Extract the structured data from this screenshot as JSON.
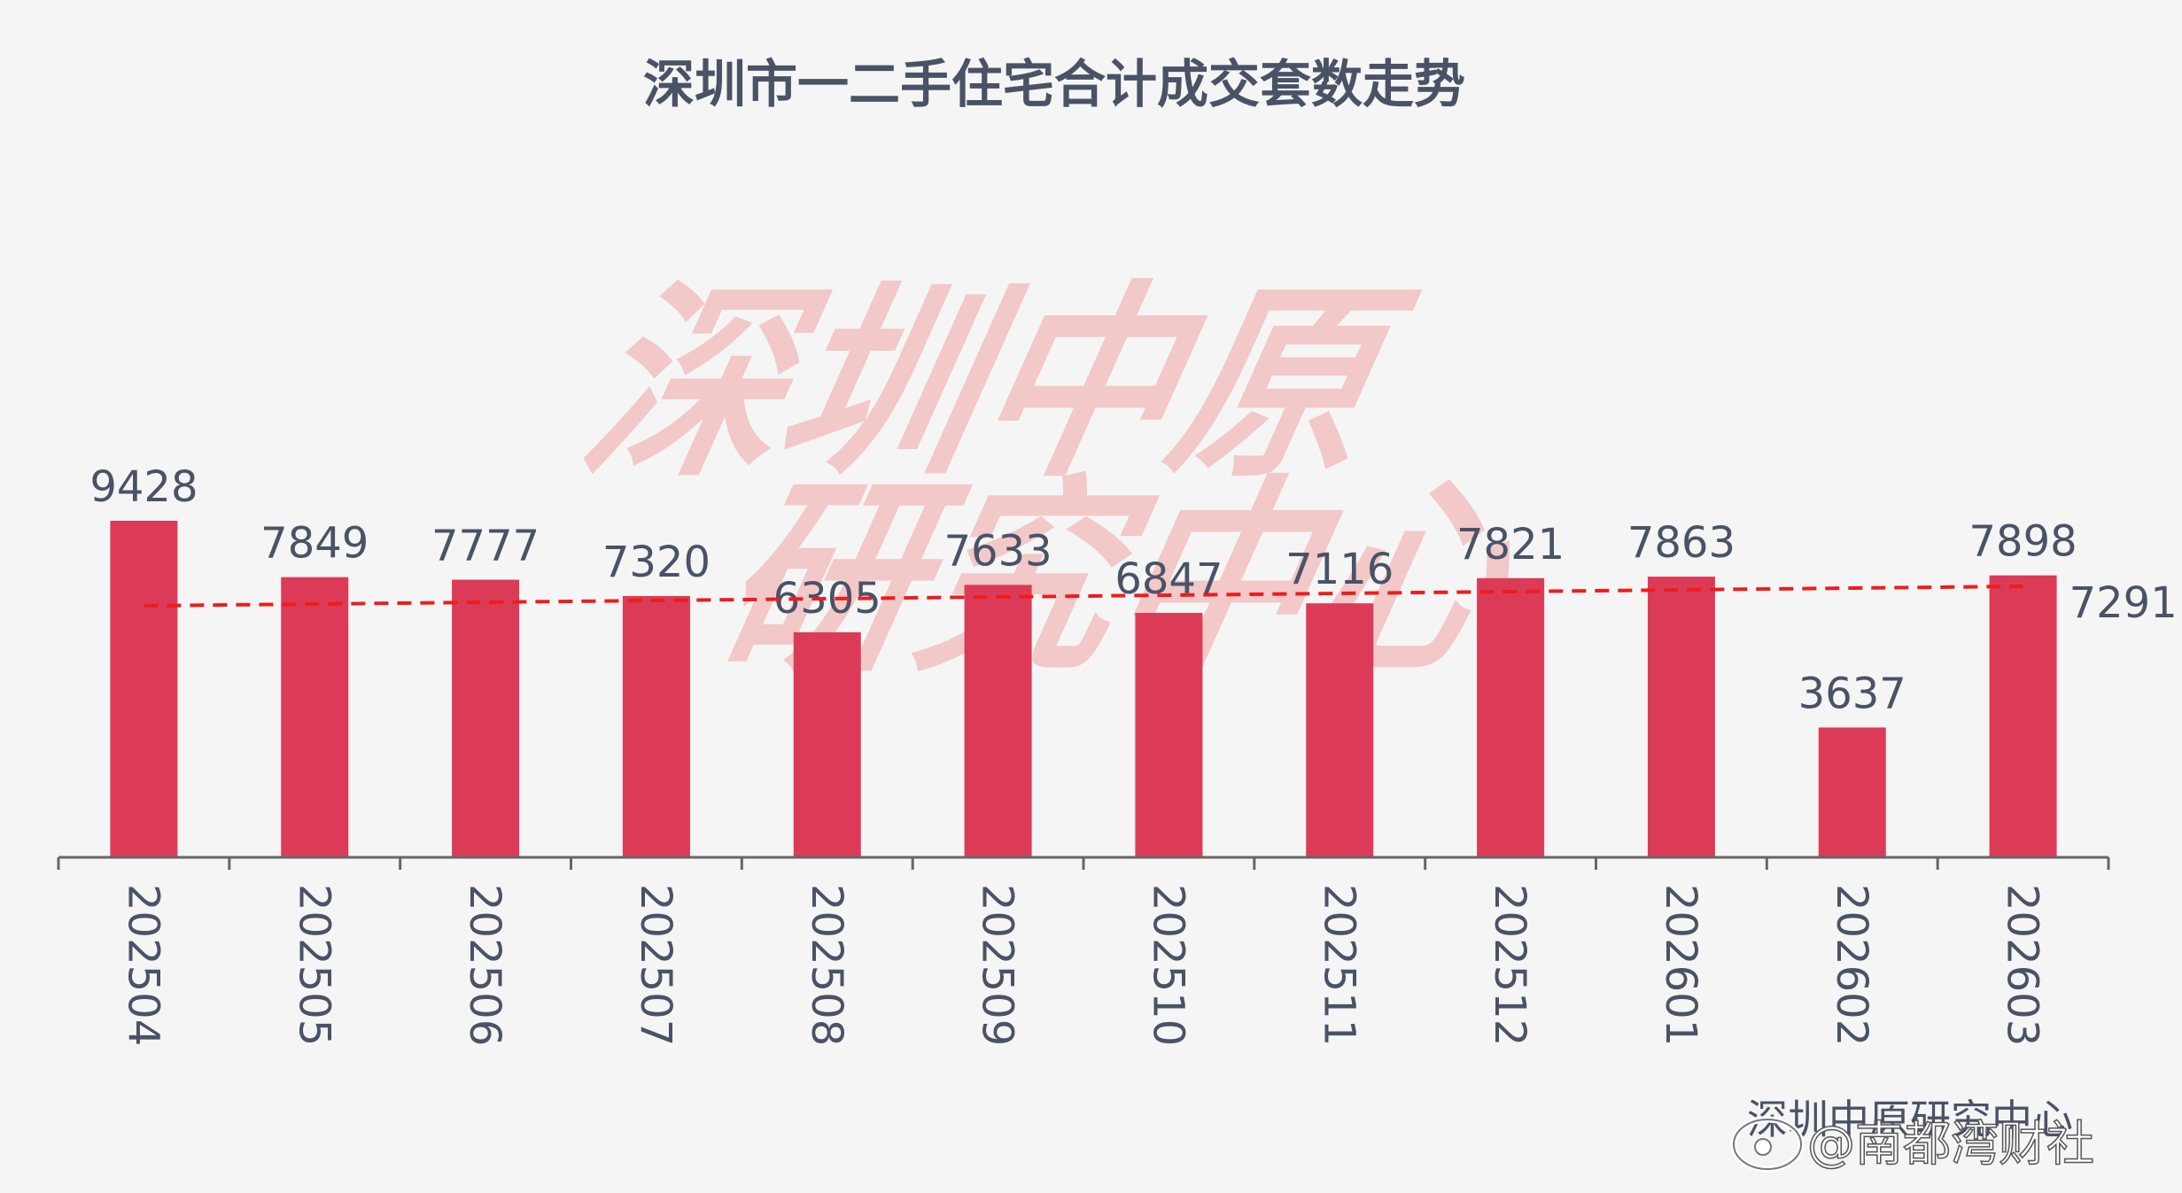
{
  "chart_data": {
    "type": "bar",
    "title": "深圳市一二手住宅合计成交套数走势",
    "categories": [
      "202504",
      "202505",
      "202506",
      "202507",
      "202508",
      "202509",
      "202510",
      "202511",
      "202512",
      "202601",
      "202602",
      "202603"
    ],
    "values": [
      9428,
      7849,
      7777,
      7320,
      6305,
      7633,
      6847,
      7116,
      7821,
      7863,
      3637,
      7898
    ],
    "average_line": {
      "value": 7291,
      "label": "7291",
      "style": "dashed"
    },
    "ylim": [
      0,
      10000
    ],
    "grid": false,
    "bar_color": "#dc3b58",
    "average_line_color": "#ee1c1c"
  },
  "watermark": {
    "line1": "深圳中原",
    "line2": "研究中心"
  },
  "source": "深圳中原研究中心",
  "weibo_mark": "@南都湾财社",
  "colors": {
    "background": "#f5f5f5",
    "text": "#4a5266",
    "axis": "#666666"
  }
}
